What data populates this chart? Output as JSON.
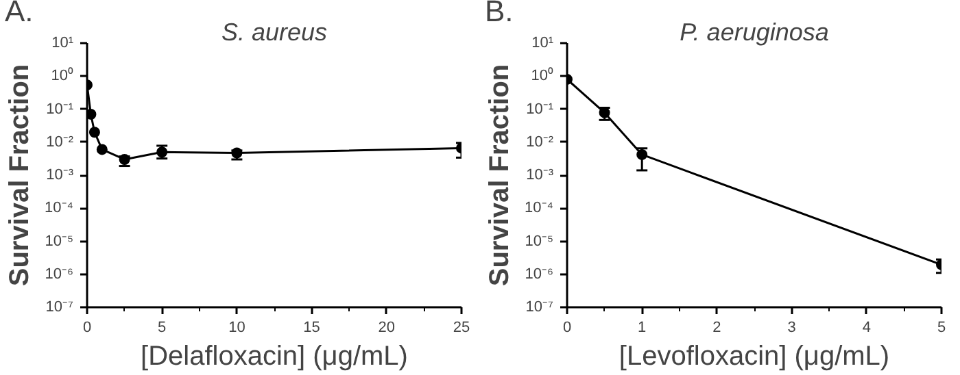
{
  "chart_data": [
    {
      "type": "line",
      "title": "S. aureus",
      "xlabel": "[Delafloxacin] (μg/mL)",
      "ylabel": "Survival Fraction",
      "annotations": [
        "A."
      ],
      "log": "y",
      "marker": "circle",
      "line_style": "solid",
      "x": [
        0,
        0.25,
        0.5,
        1,
        2.5,
        5,
        10,
        25
      ],
      "series": [
        {
          "color": "#000000",
          "values": [
            0.54,
            0.07,
            0.02,
            0.006,
            0.003,
            0.005,
            0.0047,
            0.0066
          ],
          "errors": [
            null,
            null,
            null,
            null,
            [
              0.0019,
              0.0037
            ],
            [
              0.0032,
              0.0078
            ],
            [
              0.003,
              0.0056
            ],
            [
              0.0034,
              0.0095
            ]
          ]
        }
      ],
      "xlim": [
        0,
        25
      ],
      "xticks": [
        0,
        5,
        10,
        15,
        20,
        25
      ],
      "ylim": [
        1e-07,
        10
      ],
      "yticks": [
        {
          "value": 10,
          "label": "10¹"
        },
        {
          "value": 1,
          "label": "10⁰"
        },
        {
          "value": 0.1,
          "label": "10⁻¹"
        },
        {
          "value": 0.01,
          "label": "10⁻²"
        },
        {
          "value": 0.001,
          "label": "10⁻³"
        },
        {
          "value": 0.0001,
          "label": "10⁻⁴"
        },
        {
          "value": 1e-05,
          "label": "10⁻⁵"
        },
        {
          "value": 1e-06,
          "label": "10⁻⁶"
        },
        {
          "value": 1e-07,
          "label": "10⁻⁷"
        }
      ]
    },
    {
      "type": "line",
      "title": "P. aeruginosa",
      "xlabel": "[Levofloxacin] (μg/mL)",
      "ylabel": "Survival Fraction",
      "annotations": [
        "B."
      ],
      "log": "y",
      "marker": "circle",
      "line_style": "solid",
      "x": [
        0,
        0.5,
        1,
        5
      ],
      "series": [
        {
          "color": "#000000",
          "values": [
            0.8,
            0.078,
            0.0042,
            1.95e-06
          ],
          "errors": [
            null,
            [
              0.047,
              0.11
            ],
            [
              0.0014,
              0.0065
            ],
            [
              1.1e-06,
              2.8e-06
            ]
          ]
        }
      ],
      "xlim": [
        0,
        5
      ],
      "xticks": [
        0,
        1,
        2,
        3,
        4,
        5
      ],
      "ylim": [
        1e-07,
        10
      ],
      "yticks": [
        {
          "value": 10,
          "label": "10¹"
        },
        {
          "value": 1,
          "label": "10⁰"
        },
        {
          "value": 0.1,
          "label": "10⁻¹"
        },
        {
          "value": 0.01,
          "label": "10⁻²"
        },
        {
          "value": 0.001,
          "label": "10⁻³"
        },
        {
          "value": 0.0001,
          "label": "10⁻⁴"
        },
        {
          "value": 1e-05,
          "label": "10⁻⁵"
        },
        {
          "value": 1e-06,
          "label": "10⁻⁶"
        },
        {
          "value": 1e-07,
          "label": "10⁻⁷"
        }
      ]
    }
  ]
}
